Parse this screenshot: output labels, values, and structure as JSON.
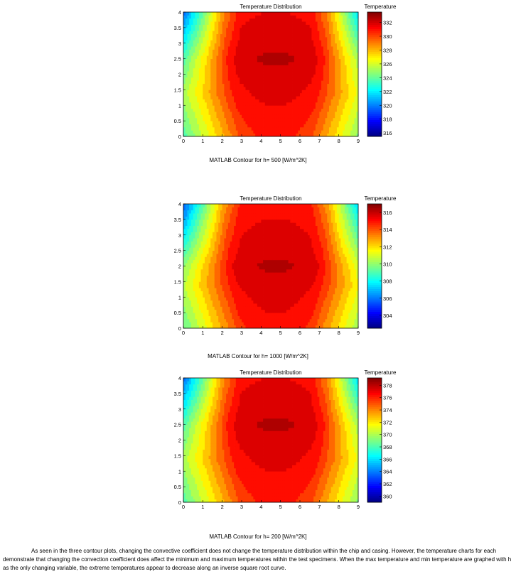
{
  "chart_data": [
    {
      "type": "heatmap",
      "title": "Temperature Distribution",
      "colorbar_label": "Temperature",
      "xlim": [
        0,
        9
      ],
      "ylim": [
        0,
        4
      ],
      "x_ticks": [
        "0",
        "1",
        "2",
        "3",
        "4",
        "5",
        "6",
        "7",
        "8",
        "9"
      ],
      "y_ticks": [
        "0",
        "0.5",
        "1",
        "1.5",
        "2",
        "2.5",
        "3",
        "3.5",
        "4"
      ],
      "temperature_range": [
        315.5,
        333.5
      ],
      "colorbar_ticks": [
        "316",
        "318",
        "320",
        "322",
        "324",
        "326",
        "328",
        "330",
        "332"
      ],
      "colorbar_tick_values": [
        316,
        318,
        320,
        322,
        324,
        326,
        328,
        330,
        332
      ],
      "hot_region_x": [
        3,
        6.5
      ],
      "peak_center": [
        4.5,
        2.5
      ],
      "colormap": "jet",
      "caption": "MATLAB Contour for h= 500 [W/m^2K]"
    },
    {
      "type": "heatmap",
      "title": "Temperature Distribution",
      "colorbar_label": "Temperature",
      "xlim": [
        0,
        9
      ],
      "ylim": [
        0,
        4
      ],
      "x_ticks": [
        "0",
        "1",
        "2",
        "3",
        "4",
        "5",
        "6",
        "7",
        "8",
        "9"
      ],
      "y_ticks": [
        "0",
        "0.5",
        "1",
        "1.5",
        "2",
        "2.5",
        "3",
        "3.5",
        "4"
      ],
      "temperature_range": [
        302.5,
        317
      ],
      "colorbar_ticks": [
        "304",
        "306",
        "308",
        "310",
        "312",
        "314",
        "316"
      ],
      "colorbar_tick_values": [
        304,
        306,
        308,
        310,
        312,
        314,
        316
      ],
      "hot_region_x": [
        3,
        6.5
      ],
      "peak_center": [
        4.5,
        2.0
      ],
      "colormap": "jet",
      "caption": "MATLAB Contour for h= 1000 [W/m^2K]"
    },
    {
      "type": "heatmap",
      "title": "Temperature Distribution",
      "colorbar_label": "Temperature",
      "xlim": [
        0,
        9
      ],
      "ylim": [
        0,
        4
      ],
      "x_ticks": [
        "0",
        "1",
        "2",
        "3",
        "4",
        "5",
        "6",
        "7",
        "8",
        "9"
      ],
      "y_ticks": [
        "0",
        "0.5",
        "1",
        "1.5",
        "2",
        "2.5",
        "3",
        "3.5",
        "4"
      ],
      "temperature_range": [
        359,
        379.2
      ],
      "colorbar_ticks": [
        "360",
        "362",
        "364",
        "366",
        "368",
        "370",
        "372",
        "374",
        "376",
        "378"
      ],
      "colorbar_tick_values": [
        360,
        362,
        364,
        366,
        368,
        370,
        372,
        374,
        376,
        378
      ],
      "hot_region_x": [
        3,
        6.5
      ],
      "peak_center": [
        4.5,
        2.5
      ],
      "colormap": "jet",
      "caption": "MATLAB Contour for h= 200 [W/m^2K]"
    }
  ],
  "paragraph": "As seen in the three contour plots, changing the convective coefficient does not change the temperature distribution within the chip and casing. However, the temperature charts for each demonstrate that changing the convection coefficient does affect the minimum and maximum temperatures within the test specimens. When the max temperature and min temperature are graphed with h as the only changing variable, the extreme temperatures appear to decrease along an inverse square root curve."
}
